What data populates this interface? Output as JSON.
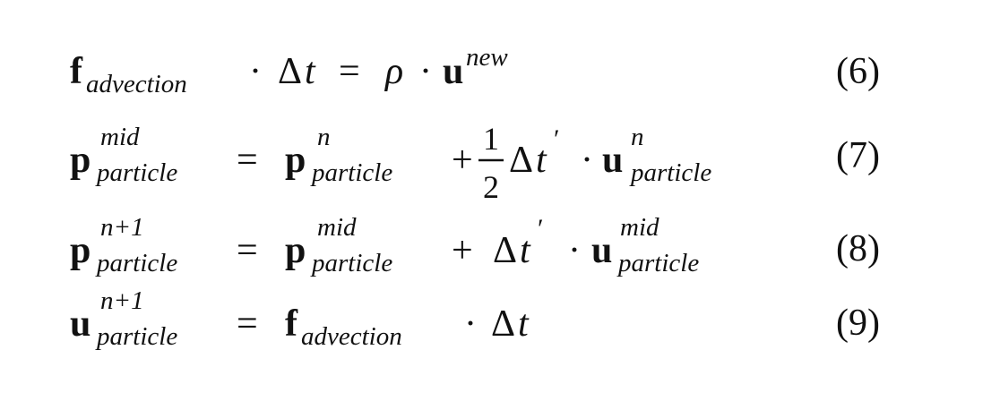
{
  "equations": [
    {
      "number": "(6)",
      "lhs": {
        "base": "f",
        "sub": "advection"
      },
      "dot1": "·",
      "delta": "Δ",
      "t": "t",
      "eq": "=",
      "rho": "ρ",
      "dot2": "·",
      "u": "u",
      "u_sup": "new"
    },
    {
      "number": "(7)",
      "lhs": {
        "base": "p",
        "sup": "mid",
        "sub": "particle"
      },
      "eq": "=",
      "p": {
        "base": "p",
        "sup": "n",
        "sub": "particle"
      },
      "plus": "+",
      "frac_num": "1",
      "frac_den": "2",
      "delta": "Δ",
      "t": "t",
      "prime": "′",
      "dot": "·",
      "u": {
        "base": "u",
        "sup": "n",
        "sub": "particle"
      }
    },
    {
      "number": "(8)",
      "lhs": {
        "base": "p",
        "sup": "n+1",
        "sub": "particle"
      },
      "eq": "=",
      "p": {
        "base": "p",
        "sup": "mid",
        "sub": "particle"
      },
      "plus": "+",
      "delta": "Δ",
      "t": "t",
      "prime": "′",
      "dot": "·",
      "u": {
        "base": "u",
        "sup": "mid",
        "sub": "particle"
      }
    },
    {
      "number": "(9)",
      "lhs": {
        "base": "u",
        "sup": "n+1",
        "sub": "particle"
      },
      "eq": "=",
      "f": {
        "base": "f",
        "sub": "advection"
      },
      "dot": "·",
      "delta": "Δ",
      "t": "t"
    }
  ]
}
